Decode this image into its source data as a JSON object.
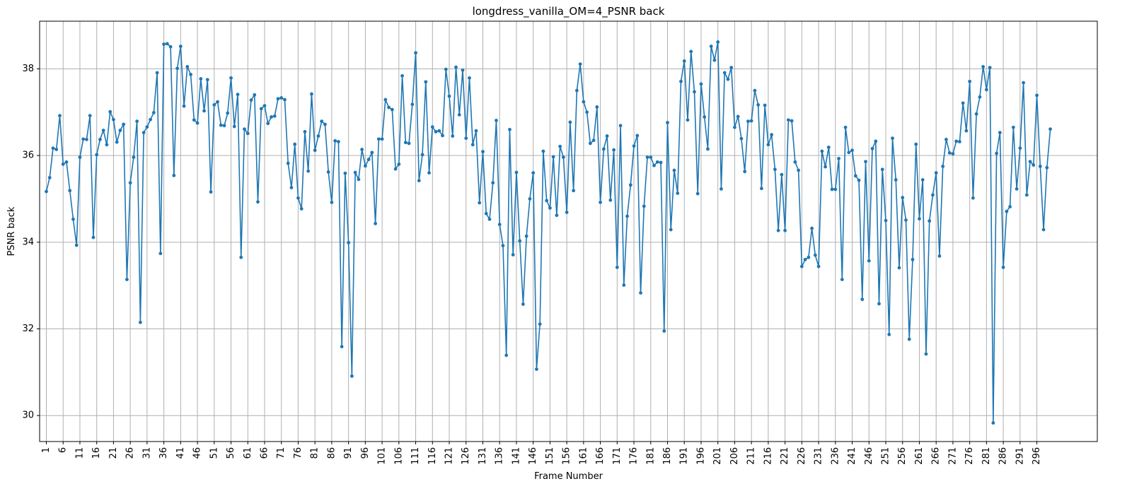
{
  "chart_data": {
    "type": "line",
    "title": "longdress_vanilla_OM=4_PSNR back",
    "xlabel": "Frame Number",
    "ylabel": "PSNR back",
    "xlim": [
      -1,
      314
    ],
    "ylim": [
      29.4,
      39.1
    ],
    "x_ticks": [
      1,
      6,
      11,
      16,
      21,
      26,
      31,
      36,
      41,
      46,
      51,
      56,
      61,
      66,
      71,
      76,
      81,
      86,
      91,
      96,
      101,
      106,
      111,
      116,
      121,
      126,
      131,
      136,
      141,
      146,
      151,
      156,
      161,
      166,
      171,
      176,
      181,
      186,
      191,
      196,
      201,
      206,
      211,
      216,
      221,
      226,
      231,
      236,
      241,
      246,
      251,
      256,
      261,
      266,
      271,
      276,
      281,
      286,
      291,
      296
    ],
    "x_tick_labels": [
      "1",
      "6",
      "11",
      "16",
      "21",
      "26",
      "31",
      "36",
      "41",
      "46",
      "51",
      "56",
      "61",
      "66",
      "71",
      "76",
      "81",
      "86",
      "91",
      "96",
      "101",
      "106",
      "111",
      "116",
      "121",
      "126",
      "131",
      "136",
      "141",
      "146",
      "151",
      "156",
      "161",
      "166",
      "171",
      "176",
      "181",
      "186",
      "191",
      "196",
      "201",
      "206",
      "211",
      "216",
      "221",
      "226",
      "231",
      "236",
      "241",
      "246",
      "251",
      "256",
      "261",
      "266",
      "271",
      "276",
      "281",
      "286",
      "291",
      "296"
    ],
    "y_ticks": [
      30,
      32,
      34,
      36,
      38
    ],
    "y_tick_labels": [
      "30",
      "32",
      "34",
      "36",
      "38"
    ],
    "grid": true,
    "series": [
      {
        "color": "#1f77b4",
        "x_start": 1,
        "values": [
          35.17,
          35.49,
          36.17,
          36.14,
          36.92,
          35.8,
          35.85,
          35.19,
          34.53,
          33.93,
          35.96,
          36.38,
          36.37,
          36.92,
          34.11,
          36.02,
          36.37,
          36.58,
          36.25,
          37.01,
          36.83,
          36.31,
          36.58,
          36.72,
          33.14,
          35.37,
          35.96,
          36.79,
          32.15,
          36.53,
          36.66,
          36.83,
          36.99,
          37.91,
          33.74,
          38.57,
          38.58,
          38.51,
          35.54,
          38.01,
          38.52,
          37.14,
          38.05,
          37.87,
          36.82,
          36.75,
          37.77,
          37.03,
          37.75,
          35.16,
          37.17,
          37.24,
          36.7,
          36.69,
          36.98,
          37.79,
          36.67,
          37.41,
          33.65,
          36.61,
          36.51,
          37.28,
          37.4,
          34.93,
          37.08,
          37.15,
          36.74,
          36.89,
          36.91,
          37.31,
          37.33,
          37.29,
          35.82,
          35.26,
          36.26,
          35.02,
          34.77,
          36.55,
          35.64,
          37.42,
          36.12,
          36.45,
          36.79,
          36.72,
          35.62,
          34.92,
          36.34,
          36.32,
          31.59,
          35.59,
          33.99,
          30.91,
          35.61,
          35.45,
          36.14,
          35.76,
          35.91,
          36.07,
          34.43,
          36.38,
          36.38,
          37.29,
          37.11,
          37.06,
          35.69,
          35.8,
          37.84,
          36.3,
          36.28,
          37.18,
          38.37,
          35.42,
          36.02,
          37.7,
          35.6,
          36.66,
          36.55,
          36.57,
          36.46,
          37.99,
          37.37,
          36.45,
          38.04,
          36.94,
          37.97,
          36.4,
          37.79,
          36.25,
          36.57,
          34.91,
          36.09,
          34.66,
          34.53,
          35.37,
          36.81,
          34.41,
          33.92,
          31.39,
          36.6,
          33.71,
          35.61,
          34.03,
          32.57,
          34.14,
          35.0,
          35.6,
          31.07,
          32.11,
          36.1,
          34.96,
          34.79,
          35.97,
          34.62,
          36.21,
          35.96,
          34.69,
          36.77,
          35.19,
          37.5,
          38.11,
          37.24,
          37.0,
          36.28,
          36.35,
          37.12,
          34.92,
          36.15,
          36.45,
          34.97,
          36.13,
          33.42,
          36.69,
          33.01,
          34.6,
          35.32,
          36.22,
          36.46,
          32.83,
          34.83,
          35.96,
          35.96,
          35.77,
          35.85,
          35.84,
          31.95,
          36.76,
          34.29,
          35.66,
          35.13,
          37.71,
          38.18,
          36.82,
          38.4,
          37.47,
          35.12,
          37.65,
          36.89,
          36.15,
          38.52,
          38.2,
          38.62,
          35.23,
          37.91,
          37.76,
          38.03,
          36.65,
          36.9,
          36.39,
          35.63,
          36.79,
          36.8,
          37.5,
          37.17,
          35.24,
          37.16,
          36.25,
          36.48,
          35.68,
          34.27,
          35.56,
          34.27,
          36.82,
          36.8,
          35.85,
          35.66,
          33.44,
          33.6,
          33.65,
          34.32,
          33.7,
          33.44,
          36.1,
          35.74,
          36.19,
          35.22,
          35.22,
          35.93,
          33.14,
          36.65,
          36.07,
          36.12,
          35.53,
          35.43,
          32.68,
          35.86,
          33.57,
          36.16,
          36.33,
          32.58,
          35.68,
          34.5,
          31.87,
          36.4,
          35.44,
          33.41,
          35.03,
          34.51,
          31.76,
          33.6,
          36.26,
          34.54,
          35.44,
          31.42,
          34.49,
          35.09,
          35.6,
          33.68,
          35.75,
          36.37,
          36.06,
          36.04,
          36.33,
          36.32,
          37.21,
          36.57,
          37.71,
          35.02,
          36.96,
          37.35,
          38.05,
          37.52,
          38.03,
          29.83,
          36.05,
          36.53,
          33.42,
          34.71,
          34.82,
          36.65,
          35.23,
          36.17,
          37.68,
          35.09,
          35.86,
          35.78,
          37.39,
          35.75,
          34.29,
          35.72,
          36.61
        ]
      }
    ]
  }
}
